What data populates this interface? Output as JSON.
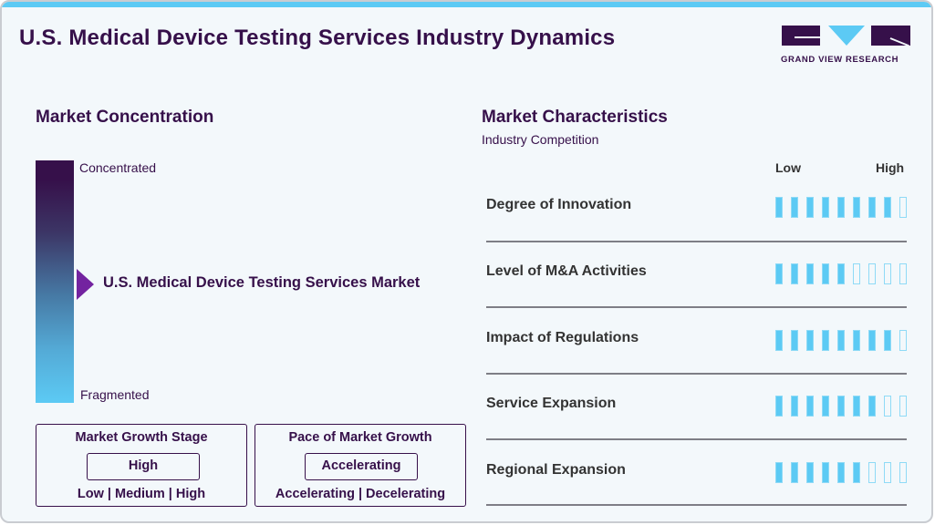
{
  "header": {
    "title": "U.S. Medical Device Testing Services Industry Dynamics",
    "logo_text": "GRAND VIEW RESEARCH"
  },
  "colors": {
    "accent_blue": "#5ccaf4",
    "brand_purple": "#36104a",
    "marker_purple": "#7323a0"
  },
  "market_concentration": {
    "title": "Market Concentration",
    "top_label": "Concentrated",
    "bottom_label": "Fragmented",
    "market_label": "U.S. Medical Device Testing Services Market",
    "marker_position_pct": 50
  },
  "growth_stage": {
    "title": "Market Growth Stage",
    "value": "High",
    "options": "Low | Medium | High"
  },
  "growth_pace": {
    "title": "Pace of Market Growth",
    "value": "Accelerating",
    "options": "Accelerating | Decelerating"
  },
  "market_characteristics": {
    "title": "Market Characteristics",
    "subtitle": "Industry Competition",
    "scale_low": "Low",
    "scale_high": "High",
    "max_rating": 9,
    "rows": [
      {
        "label": "Degree of Innovation",
        "rating": 8
      },
      {
        "label": "Level of M&A Activities",
        "rating": 5
      },
      {
        "label": "Impact of Regulations",
        "rating": 8
      },
      {
        "label": "Service Expansion",
        "rating": 7
      },
      {
        "label": "Regional Expansion",
        "rating": 6
      }
    ]
  },
  "chart_data": {
    "type": "bar",
    "title": "Market Characteristics - Industry Competition",
    "categories": [
      "Degree of Innovation",
      "Level of M&A Activities",
      "Impact of Regulations",
      "Service Expansion",
      "Regional Expansion"
    ],
    "values": [
      8,
      5,
      8,
      7,
      6
    ],
    "ylim": [
      0,
      9
    ],
    "xlabel": "",
    "ylabel": "Low to High"
  }
}
